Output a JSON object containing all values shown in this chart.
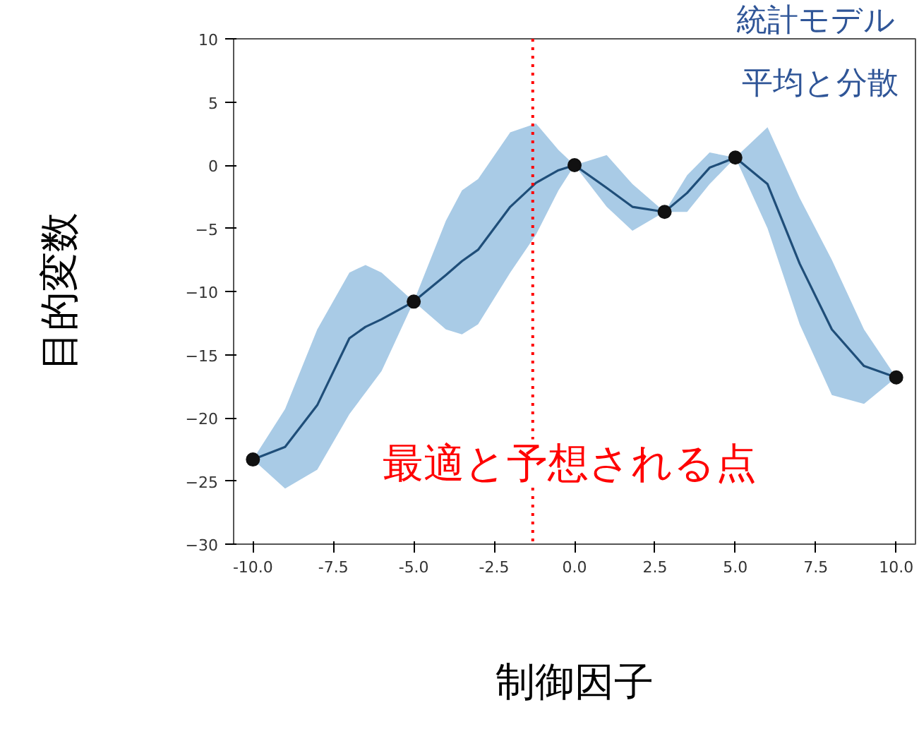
{
  "chart_data": {
    "type": "line",
    "xlabel": "制御因子",
    "ylabel": "目的変数",
    "xlim": [
      -10.6,
      10.6
    ],
    "ylim": [
      -30,
      10
    ],
    "xticks": [
      {
        "value": -10,
        "label": "-10.0"
      },
      {
        "value": -7.5,
        "label": "-7.5"
      },
      {
        "value": -5,
        "label": "-5.0"
      },
      {
        "value": -2.5,
        "label": "-2.5"
      },
      {
        "value": 0,
        "label": "0.0"
      },
      {
        "value": 2.5,
        "label": "2.5"
      },
      {
        "value": 5,
        "label": "5.0"
      },
      {
        "value": 7.5,
        "label": "7.5"
      },
      {
        "value": 10,
        "label": "10.0"
      }
    ],
    "yticks": [
      -30,
      -25,
      -20,
      -15,
      -10,
      -5,
      0,
      5,
      10
    ],
    "grid": false,
    "series": [
      {
        "color": "#1f4e79",
        "marker": "none",
        "line_style": "solid",
        "x": [
          -10,
          -9,
          -8,
          -7,
          -6.5,
          -6,
          -5,
          -4,
          -3.5,
          -3,
          -2,
          -1.2,
          -0.5,
          0,
          1,
          1.8,
          2.8,
          3.5,
          4.2,
          5,
          6,
          7,
          8,
          9,
          10
        ],
        "values": [
          -23.3,
          -22.3,
          -19,
          -13.7,
          -12.8,
          -12.2,
          -10.8,
          -8.7,
          -7.6,
          -6.7,
          -3.3,
          -1.4,
          -0.4,
          0,
          -1.8,
          -3.3,
          -3.7,
          -2.2,
          -0.2,
          0.6,
          -1.5,
          -7.8,
          -13,
          -15.9,
          -16.8
        ],
        "lower": [
          -23.3,
          -25.6,
          -24.1,
          -19.7,
          -18,
          -16.3,
          -10.8,
          -13,
          -13.4,
          -12.6,
          -8.5,
          -5.5,
          -2,
          0,
          -3.3,
          -5.2,
          -3.7,
          -3.7,
          -1.5,
          0.6,
          -5,
          -12.6,
          -18.2,
          -18.9,
          -16.8
        ],
        "upper": [
          -23.3,
          -19.3,
          -13,
          -8.5,
          -7.9,
          -8.5,
          -10.8,
          -4.4,
          -2,
          -1.1,
          2.6,
          3.3,
          1.2,
          0,
          0.8,
          -1.5,
          -3.7,
          -0.8,
          1,
          0.6,
          3,
          -2.6,
          -7.5,
          -13,
          -16.8
        ]
      },
      {
        "type": "scatter",
        "color": "#111111",
        "marker": "circle",
        "x": [
          -10,
          -5,
          0,
          2.8,
          5,
          10
        ],
        "values": [
          -23.3,
          -10.8,
          0,
          -3.7,
          0.6,
          -16.8
        ]
      }
    ],
    "ref_lines": [
      {
        "axis": "x",
        "value": -1.3,
        "color": "#ff0000",
        "line_style": "dotted"
      }
    ],
    "annotations": [
      "統計モデル",
      "平均と分散",
      "最適と予想される点"
    ]
  }
}
